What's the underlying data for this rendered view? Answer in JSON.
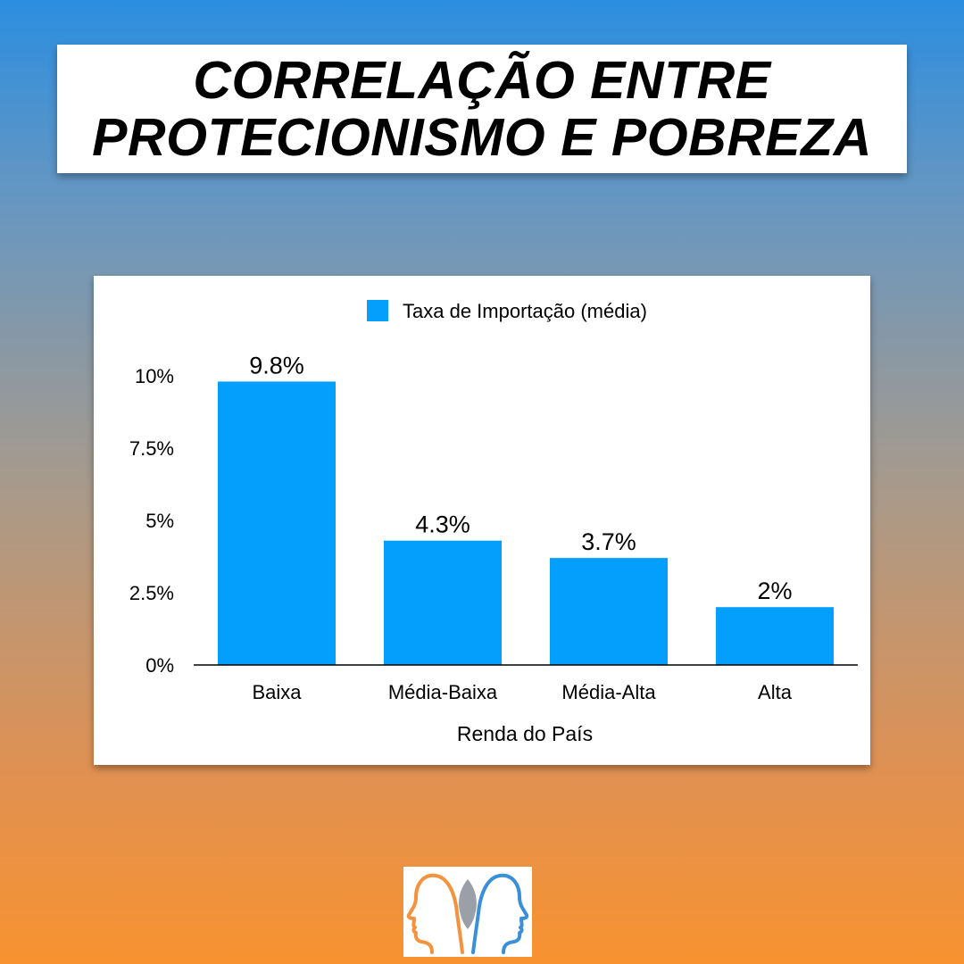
{
  "title": {
    "line1": "CORRELAÇÃO ENTRE",
    "line2": "PROTECIONISMO E POBREZA"
  },
  "colors": {
    "bar": "#049ffd",
    "axis": "#000000",
    "logo_orange": "#f5923e",
    "logo_blue": "#3a90d8"
  },
  "chart_data": {
    "type": "bar",
    "categories": [
      "Baixa",
      "Média-Baixa",
      "Média-Alta",
      "Alta"
    ],
    "series": [
      {
        "name": "Taxa de Importação (média)",
        "values": [
          9.8,
          4.3,
          3.7,
          2
        ]
      }
    ],
    "data_labels": [
      "9.8%",
      "4.3%",
      "3.7%",
      "2%"
    ],
    "xlabel": "Renda do País",
    "ylabel": "",
    "ylim": [
      0,
      10
    ],
    "yticks": [
      0,
      2.5,
      5,
      7.5,
      10
    ],
    "ytick_labels": [
      "0%",
      "2.5%",
      "5%",
      "7.5%",
      "10%"
    ],
    "legend_position": "top-center",
    "grid": false
  },
  "logo": {
    "icon": "two-heads-profile-logo"
  }
}
